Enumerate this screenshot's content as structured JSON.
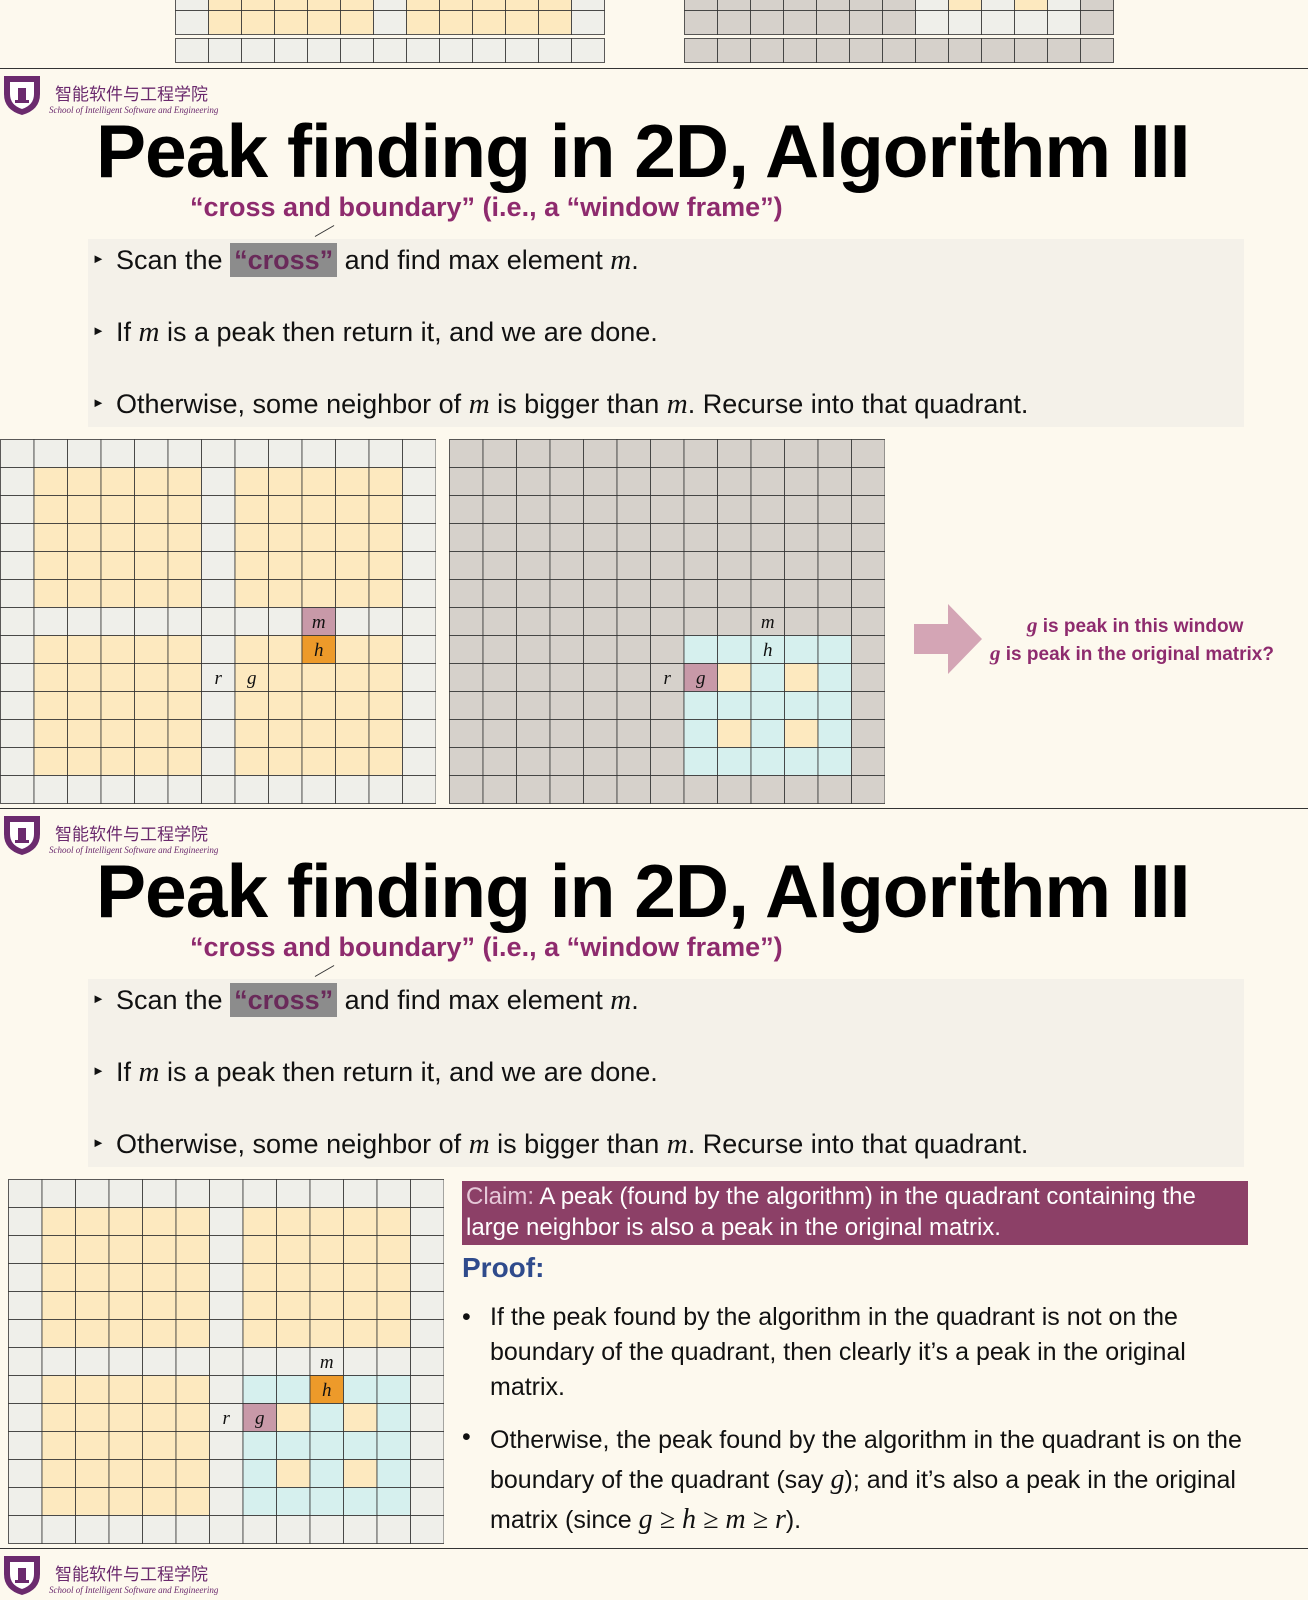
{
  "logo": {
    "cn": "智能软件与工程学院",
    "en": "School of Intelligent Software and Engineering"
  },
  "slide": {
    "title": "Peak finding in 2D, Algorithm III",
    "subtitle": "“cross and boundary” (i.e., a “window frame”)",
    "bullet1": {
      "pre": "Scan the ",
      "highlight": "“cross”",
      "post": " and find max element ",
      "var": "m",
      "end": "."
    },
    "bullet2": {
      "pre": "If ",
      "var": "m",
      "post": " is a peak then return it, and we are done."
    },
    "bullet3": {
      "pre": "Otherwise, some neighbor of ",
      "var1": "m",
      "mid": " is bigger than ",
      "var2": "m",
      "post": ". Recurse into that quadrant."
    }
  },
  "grid_labels": {
    "m": "m",
    "h": "h",
    "r": "r",
    "g": "g"
  },
  "arrow_note": {
    "line1_var": "g",
    "line1_text": " is peak in this window",
    "line2_var": "g",
    "line2_text": " is peak in the original matrix?"
  },
  "claim": {
    "keyword": "Claim:",
    "text": "  A peak (found by the algorithm) in the quadrant containing the large neighbor is also a peak in the original matrix."
  },
  "proof": {
    "heading": "Proof:",
    "item1": "If the peak found by the algorithm in the quadrant is not on the boundary of the quadrant, then clearly it’s a peak in the original matrix.",
    "item2_pre": "Otherwise, the peak found by the algorithm in the quadrant is on the boundary of the quadrant (say ",
    "item2_var": "g",
    "item2_mid": "); and it’s also a peak in the original matrix (since ",
    "item2_math": "g ≥ h ≥ m ≥ r",
    "item2_end": ")."
  },
  "colors": {
    "yellow": "#fde9bf",
    "gray": "#efefea",
    "dark": "#d6d1cb",
    "cyan": "#d6f0ee",
    "pink": "#c899a8",
    "orange": "#ed9a2a",
    "accent": "#8e2b6e",
    "claim_bg": "#8c4067",
    "proof_blue": "#2f4b8c"
  }
}
